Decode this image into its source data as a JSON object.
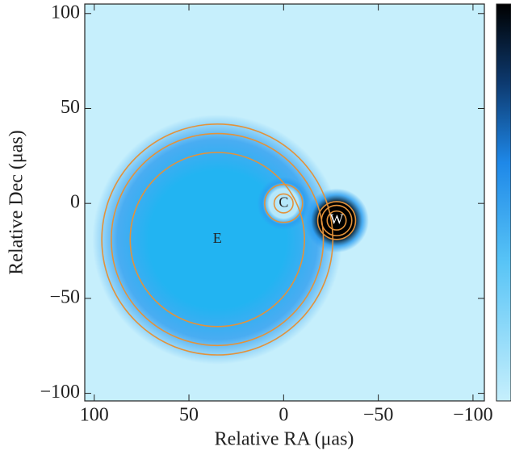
{
  "chart_data": {
    "type": "image",
    "xlabel": "Relative RA (μas)",
    "ylabel": "Relative Dec (μas)",
    "xlim": [
      105,
      -106
    ],
    "ylim": [
      -104,
      105
    ],
    "xticks": [
      100,
      50,
      0,
      {
        "value": -50,
        "label": "−50"
      },
      {
        "value": -100,
        "label": "−100"
      }
    ],
    "yticks": [
      100,
      50,
      0,
      {
        "value": -50,
        "label": "−50"
      },
      {
        "value": -100,
        "label": "−100"
      }
    ],
    "background": "#c6effc",
    "contour_color": "#e3923a",
    "edge_color": "#2a9cf0",
    "components": [
      {
        "name": "E",
        "x": 35,
        "y": -19,
        "radius": 66,
        "color": "#22b4f2",
        "contours": [
          46,
          56,
          61
        ]
      },
      {
        "name": "C",
        "x": 0,
        "y": 0,
        "radius": 14,
        "color": "#b6e8fb",
        "contours": [
          5,
          10
        ]
      },
      {
        "name": "W",
        "x": -28,
        "y": -9,
        "radius": 17,
        "color": "#000000",
        "contours": [
          5,
          8,
          10
        ]
      }
    ]
  }
}
